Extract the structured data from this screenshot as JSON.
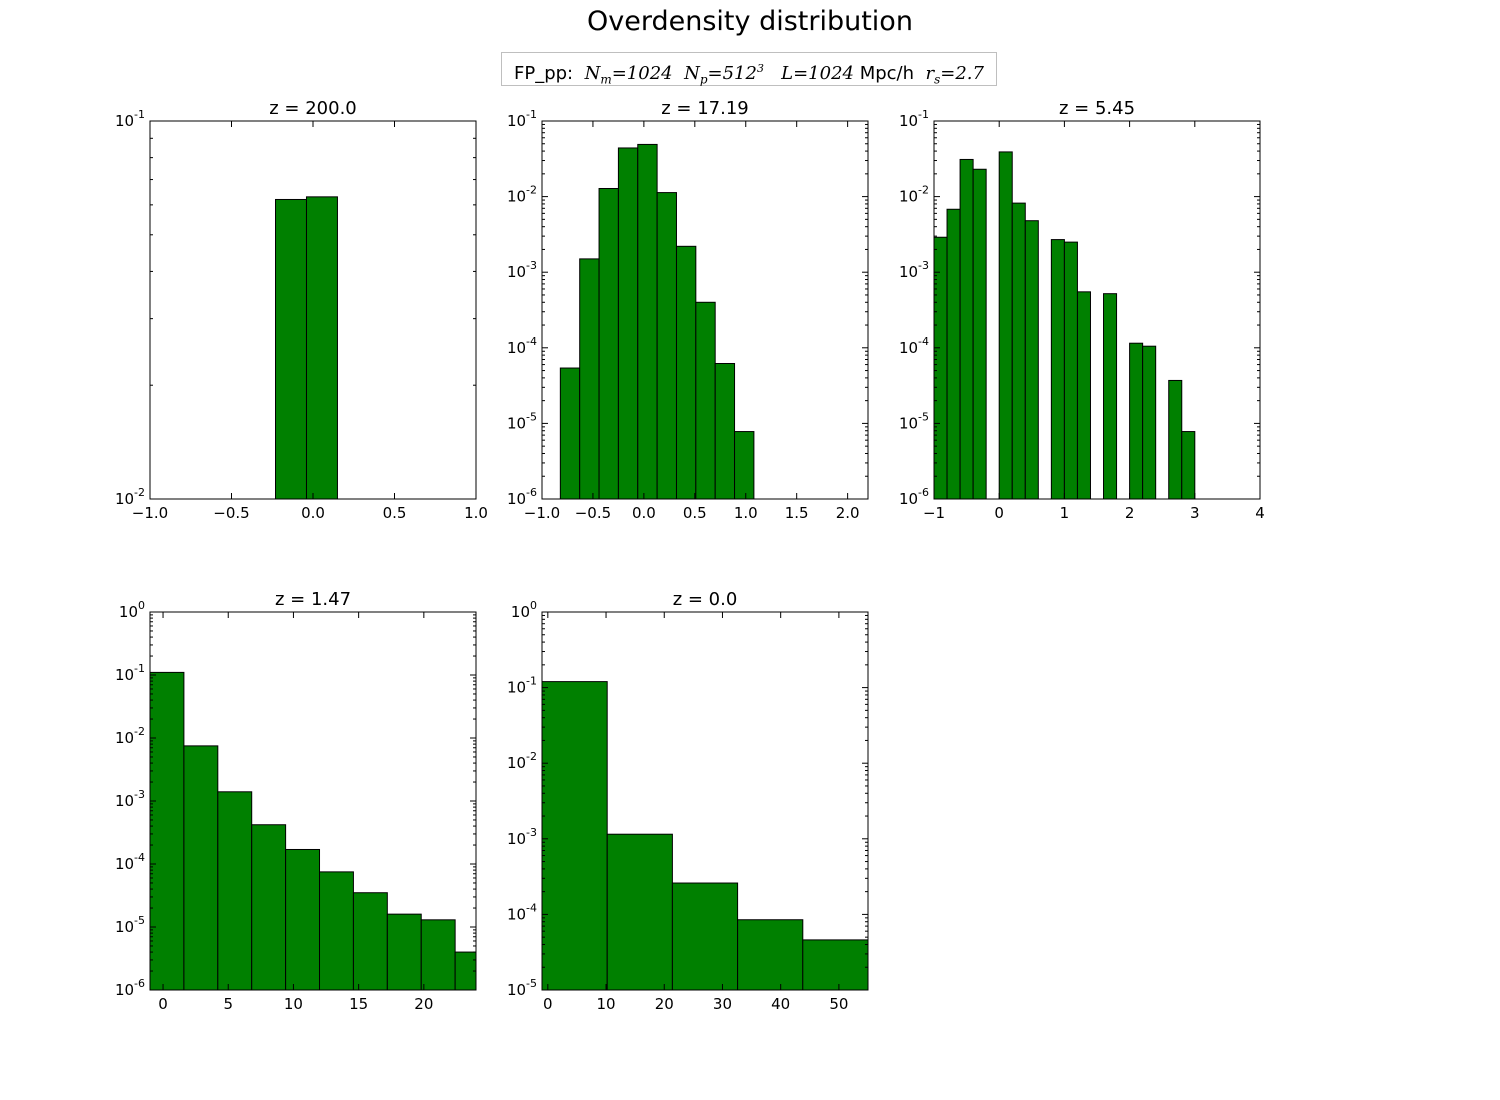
{
  "figure_title": "Overdensity distribution",
  "subtitle": {
    "prefix": "FP_pp:",
    "nm_sym": "N",
    "nm_sub": "m",
    "nm_val": "=1024",
    "np_sym": "N",
    "np_sub": "p",
    "np_val": "=512",
    "np_exp": "3",
    "l_sym": "L",
    "l_val": "=1024",
    "l_unit": "Mpc/h",
    "rs_sym": "r",
    "rs_sub": "s",
    "rs_val": "=2.7"
  },
  "bar_color": "#008000",
  "chart_data": [
    {
      "type": "bar",
      "title": "z = 200.0",
      "xlabel": "",
      "ylabel": "",
      "yscale": "log",
      "xlim": [
        -1.0,
        1.0
      ],
      "ylim": [
        0.01,
        0.1
      ],
      "xticks": [
        -1.0,
        -0.5,
        0.0,
        0.5,
        1.0
      ],
      "xtick_labels": [
        "−1.0",
        "−0.5",
        "0.0",
        "0.5",
        "1.0"
      ],
      "ytick_labels": [
        {
          "base": "10",
          "exp": "-2"
        },
        {
          "base": "10",
          "exp": "-1"
        }
      ],
      "bins": [
        {
          "x0": -0.23,
          "x1": -0.04,
          "y": 0.062
        },
        {
          "x0": -0.04,
          "x1": 0.15,
          "y": 0.063
        }
      ]
    },
    {
      "type": "bar",
      "title": "z = 17.19",
      "xlabel": "",
      "ylabel": "",
      "yscale": "log",
      "xlim": [
        -1.0,
        2.2
      ],
      "ylim": [
        1e-06,
        0.1
      ],
      "xticks": [
        -1.0,
        -0.5,
        0.0,
        0.5,
        1.0,
        1.5,
        2.0
      ],
      "xtick_labels": [
        "−1.0",
        "−0.5",
        "0.0",
        "0.5",
        "1.0",
        "1.5",
        "2.0"
      ],
      "ytick_labels": [
        {
          "base": "10",
          "exp": "-6"
        },
        {
          "base": "10",
          "exp": "-5"
        },
        {
          "base": "10",
          "exp": "-4"
        },
        {
          "base": "10",
          "exp": "-3"
        },
        {
          "base": "10",
          "exp": "-2"
        },
        {
          "base": "10",
          "exp": "-1"
        }
      ],
      "bins": [
        {
          "x0": -0.82,
          "x1": -0.63,
          "y": 5.4e-05
        },
        {
          "x0": -0.63,
          "x1": -0.44,
          "y": 0.0015
        },
        {
          "x0": -0.44,
          "x1": -0.25,
          "y": 0.0128
        },
        {
          "x0": -0.25,
          "x1": -0.06,
          "y": 0.044
        },
        {
          "x0": -0.06,
          "x1": 0.13,
          "y": 0.049
        },
        {
          "x0": 0.13,
          "x1": 0.32,
          "y": 0.0113
        },
        {
          "x0": 0.32,
          "x1": 0.51,
          "y": 0.0022
        },
        {
          "x0": 0.51,
          "x1": 0.7,
          "y": 0.0004
        },
        {
          "x0": 0.7,
          "x1": 0.89,
          "y": 6.2e-05
        },
        {
          "x0": 0.89,
          "x1": 1.08,
          "y": 7.8e-06
        }
      ]
    },
    {
      "type": "bar",
      "title": "z = 5.45",
      "xlabel": "",
      "ylabel": "",
      "yscale": "log",
      "xlim": [
        -1.0,
        4.0
      ],
      "ylim": [
        1e-06,
        0.1
      ],
      "xticks": [
        -1,
        0,
        1,
        2,
        3,
        4
      ],
      "xtick_labels": [
        "−1",
        "0",
        "1",
        "2",
        "3",
        "4"
      ],
      "ytick_labels": [
        {
          "base": "10",
          "exp": "-6"
        },
        {
          "base": "10",
          "exp": "-5"
        },
        {
          "base": "10",
          "exp": "-4"
        },
        {
          "base": "10",
          "exp": "-3"
        },
        {
          "base": "10",
          "exp": "-2"
        },
        {
          "base": "10",
          "exp": "-1"
        }
      ],
      "bins": [
        {
          "x0": -1.0,
          "x1": -0.8,
          "y": 0.0029
        },
        {
          "x0": -0.8,
          "x1": -0.6,
          "y": 0.0068
        },
        {
          "x0": -0.6,
          "x1": -0.4,
          "y": 0.031
        },
        {
          "x0": -0.4,
          "x1": -0.2,
          "y": 0.023
        },
        {
          "x0": 0.0,
          "x1": 0.2,
          "y": 0.039
        },
        {
          "x0": 0.2,
          "x1": 0.4,
          "y": 0.0082
        },
        {
          "x0": 0.4,
          "x1": 0.6,
          "y": 0.0048
        },
        {
          "x0": 0.8,
          "x1": 1.0,
          "y": 0.0027
        },
        {
          "x0": 1.0,
          "x1": 1.2,
          "y": 0.0025
        },
        {
          "x0": 1.2,
          "x1": 1.4,
          "y": 0.00055
        },
        {
          "x0": 1.6,
          "x1": 1.8,
          "y": 0.00052
        },
        {
          "x0": 2.0,
          "x1": 2.2,
          "y": 0.000115
        },
        {
          "x0": 2.2,
          "x1": 2.4,
          "y": 0.000105
        },
        {
          "x0": 2.6,
          "x1": 2.8,
          "y": 3.7e-05
        },
        {
          "x0": 2.8,
          "x1": 3.0,
          "y": 7.8e-06
        }
      ]
    },
    {
      "type": "bar",
      "title": "z = 1.47",
      "xlabel": "",
      "ylabel": "",
      "yscale": "log",
      "xlim": [
        -1.0,
        24.0
      ],
      "ylim": [
        1e-06,
        1.0
      ],
      "xticks": [
        0,
        5,
        10,
        15,
        20
      ],
      "xtick_labels": [
        "0",
        "5",
        "10",
        "15",
        "20"
      ],
      "ytick_labels": [
        {
          "base": "10",
          "exp": "-6"
        },
        {
          "base": "10",
          "exp": "-5"
        },
        {
          "base": "10",
          "exp": "-4"
        },
        {
          "base": "10",
          "exp": "-3"
        },
        {
          "base": "10",
          "exp": "-2"
        },
        {
          "base": "10",
          "exp": "-1"
        },
        {
          "base": "10",
          "exp": "0"
        }
      ],
      "bins": [
        {
          "x0": -1.0,
          "x1": 1.6,
          "y": 0.11
        },
        {
          "x0": 1.6,
          "x1": 4.2,
          "y": 0.0075
        },
        {
          "x0": 4.2,
          "x1": 6.8,
          "y": 0.0014
        },
        {
          "x0": 6.8,
          "x1": 9.4,
          "y": 0.00042
        },
        {
          "x0": 9.4,
          "x1": 12.0,
          "y": 0.00017
        },
        {
          "x0": 12.0,
          "x1": 14.6,
          "y": 7.5e-05
        },
        {
          "x0": 14.6,
          "x1": 17.2,
          "y": 3.5e-05
        },
        {
          "x0": 17.2,
          "x1": 19.8,
          "y": 1.6e-05
        },
        {
          "x0": 19.8,
          "x1": 22.4,
          "y": 1.3e-05
        },
        {
          "x0": 22.4,
          "x1": 25.0,
          "y": 4e-06
        }
      ]
    },
    {
      "type": "bar",
      "title": "z = 0.0",
      "xlabel": "",
      "ylabel": "",
      "yscale": "log",
      "xlim": [
        -1.0,
        55.0
      ],
      "ylim": [
        1e-05,
        1.0
      ],
      "xticks": [
        0,
        10,
        20,
        30,
        40,
        50
      ],
      "xtick_labels": [
        "0",
        "10",
        "20",
        "30",
        "40",
        "50"
      ],
      "ytick_labels": [
        {
          "base": "10",
          "exp": "-5"
        },
        {
          "base": "10",
          "exp": "-4"
        },
        {
          "base": "10",
          "exp": "-3"
        },
        {
          "base": "10",
          "exp": "-2"
        },
        {
          "base": "10",
          "exp": "-1"
        },
        {
          "base": "10",
          "exp": "0"
        }
      ],
      "bins": [
        {
          "x0": -1.0,
          "x1": 10.2,
          "y": 0.12
        },
        {
          "x0": 10.2,
          "x1": 21.4,
          "y": 0.00115
        },
        {
          "x0": 21.4,
          "x1": 32.6,
          "y": 0.00026
        },
        {
          "x0": 32.6,
          "x1": 43.8,
          "y": 8.5e-05
        },
        {
          "x0": 43.8,
          "x1": 55.0,
          "y": 4.6e-05
        }
      ]
    }
  ]
}
